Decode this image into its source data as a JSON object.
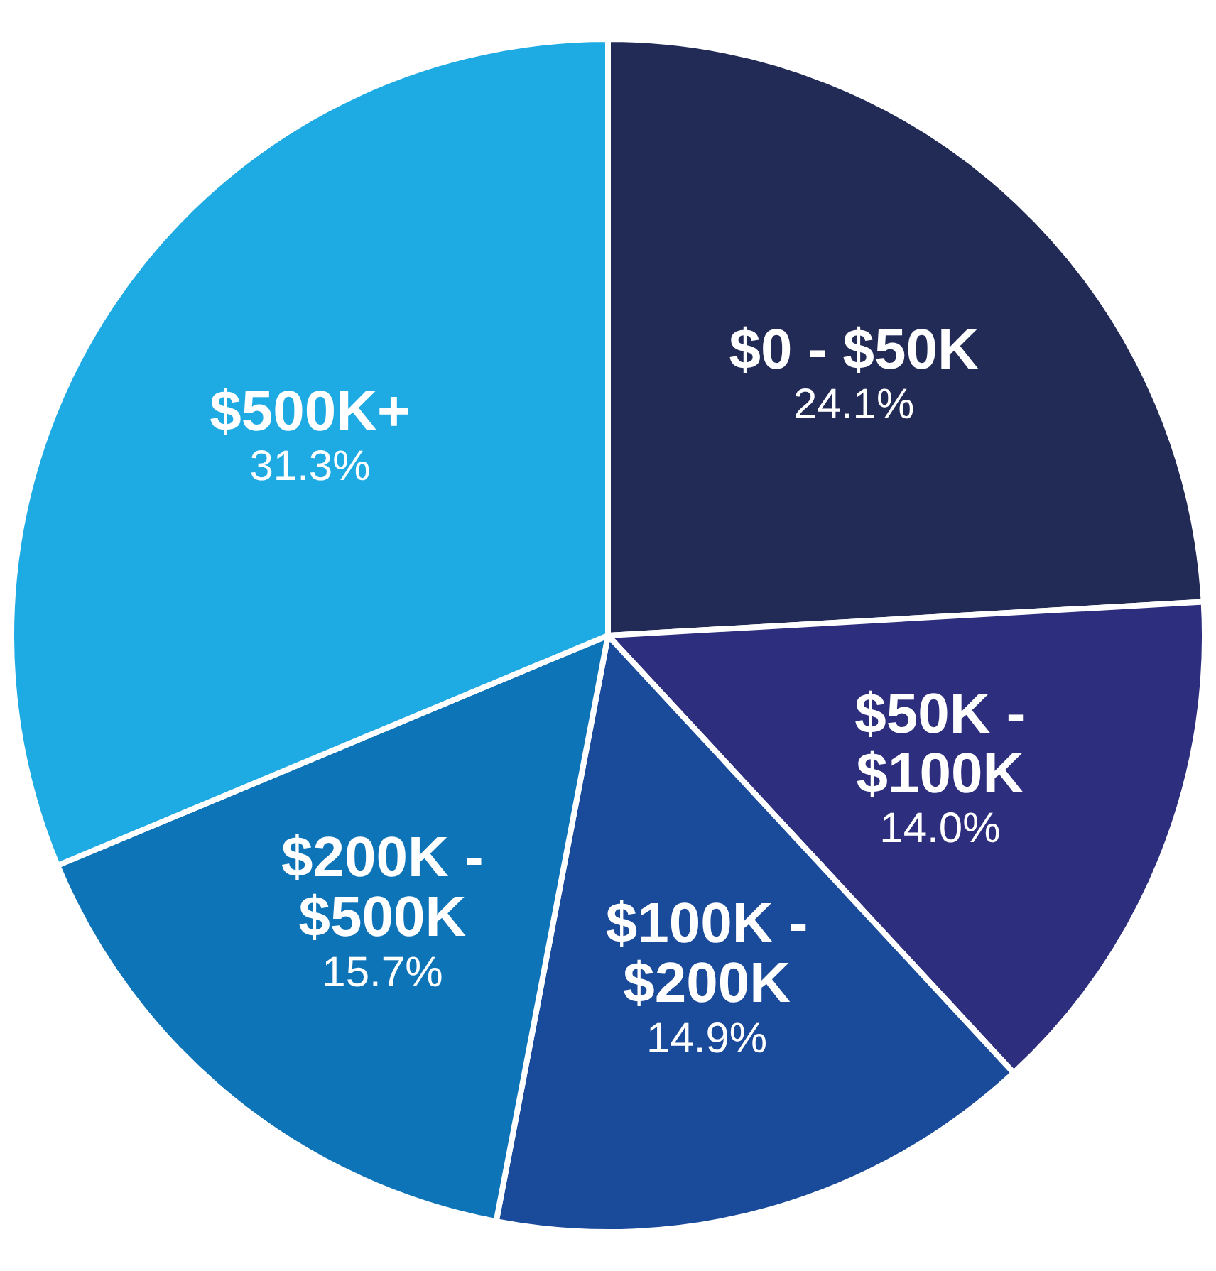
{
  "chart_data": {
    "type": "pie",
    "categories": [
      "$0 - $50K",
      "$50K - $100K",
      "$100K - $200K",
      "$200K - $500K",
      "$500K+"
    ],
    "values": [
      24.1,
      14.0,
      14.9,
      15.7,
      31.3
    ],
    "value_labels": [
      "24.1%",
      "14.0%",
      "14.9%",
      "15.7%",
      "31.3%"
    ],
    "colors": [
      "#222a56",
      "#2e2e7e",
      "#1a4a9a",
      "#0e74b8",
      "#1eaae2"
    ],
    "legend": false
  }
}
